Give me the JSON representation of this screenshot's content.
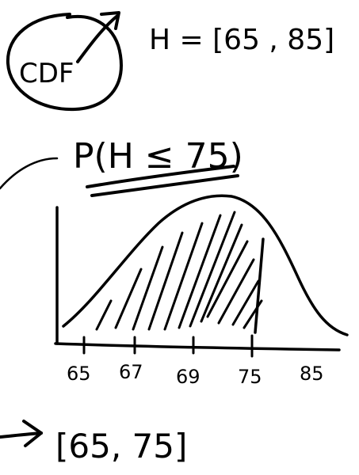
{
  "notes": {
    "cdf_label": "CDF",
    "range_statement": "H = [65 , 85]",
    "probability_expression": "P(H ≤ 75)",
    "result_interval": "[65, 75]"
  },
  "axis": {
    "tick_labels": [
      "65",
      "67",
      "69",
      "75",
      "85"
    ]
  },
  "colors": {
    "ink": "#000000",
    "background": "#ffffff"
  },
  "icons": {
    "arrow_from_cdf": "arrow-icon",
    "arrow_to_result": "arrow-icon"
  }
}
